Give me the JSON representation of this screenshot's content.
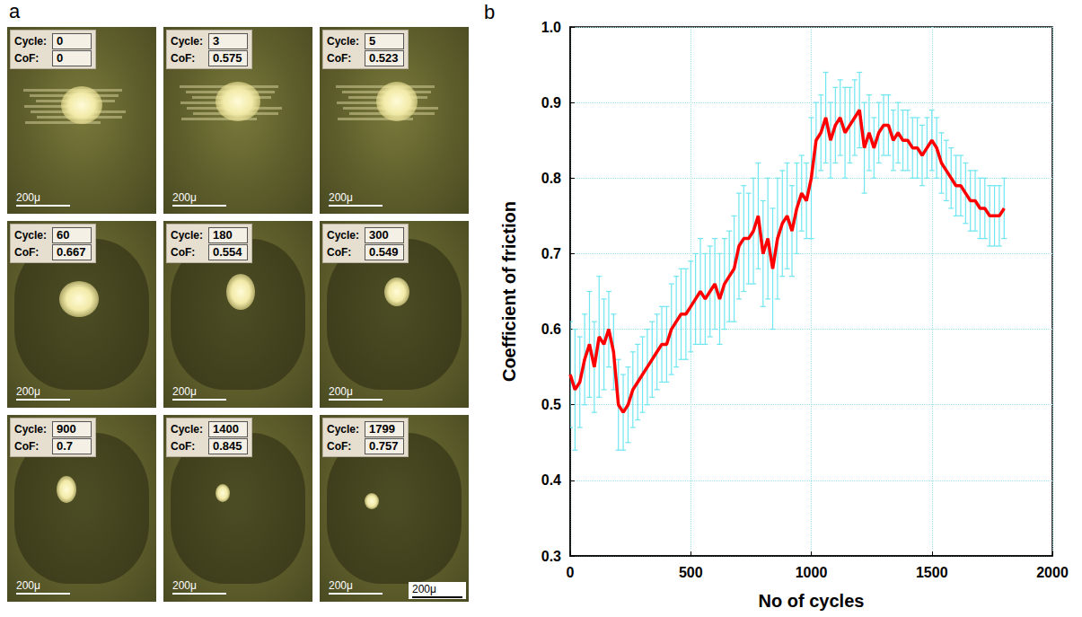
{
  "panel_a": {
    "letter": "a",
    "cycle_label": "Cycle:",
    "cof_label": "CoF:",
    "scale_label": "200μ",
    "frames": [
      {
        "cycle": 0,
        "cof": 0
      },
      {
        "cycle": 3,
        "cof": 0.575
      },
      {
        "cycle": 5,
        "cof": 0.523
      },
      {
        "cycle": 60,
        "cof": 0.667
      },
      {
        "cycle": 180,
        "cof": 0.554
      },
      {
        "cycle": 300,
        "cof": 0.549
      },
      {
        "cycle": 900,
        "cof": 0.7
      },
      {
        "cycle": 1400,
        "cof": 0.845
      },
      {
        "cycle": 1799,
        "cof": 0.757
      }
    ],
    "extra_scale_label": "200μ"
  },
  "chart_data": {
    "letter": "b",
    "type": "line",
    "x_label": "No of cycles",
    "y_label": "Coefficient of friction",
    "color": "#ff0000",
    "x": [
      0,
      20,
      40,
      60,
      80,
      100,
      120,
      140,
      160,
      180,
      200,
      220,
      240,
      260,
      280,
      300,
      320,
      340,
      360,
      380,
      400,
      420,
      440,
      460,
      480,
      500,
      520,
      540,
      560,
      580,
      600,
      620,
      640,
      660,
      680,
      700,
      720,
      740,
      760,
      780,
      800,
      820,
      840,
      860,
      880,
      900,
      920,
      940,
      960,
      980,
      1000,
      1020,
      1040,
      1060,
      1080,
      1100,
      1120,
      1140,
      1160,
      1180,
      1200,
      1220,
      1240,
      1260,
      1280,
      1300,
      1320,
      1340,
      1360,
      1380,
      1400,
      1420,
      1440,
      1460,
      1480,
      1500,
      1520,
      1540,
      1560,
      1580,
      1600,
      1620,
      1640,
      1660,
      1680,
      1700,
      1720,
      1740,
      1760,
      1780,
      1800
    ],
    "values": [
      0.54,
      0.52,
      0.53,
      0.56,
      0.58,
      0.55,
      0.59,
      0.58,
      0.6,
      0.57,
      0.5,
      0.49,
      0.5,
      0.52,
      0.53,
      0.54,
      0.55,
      0.56,
      0.57,
      0.58,
      0.58,
      0.6,
      0.61,
      0.62,
      0.62,
      0.63,
      0.64,
      0.65,
      0.64,
      0.65,
      0.66,
      0.64,
      0.66,
      0.67,
      0.68,
      0.71,
      0.72,
      0.72,
      0.73,
      0.75,
      0.7,
      0.72,
      0.68,
      0.72,
      0.74,
      0.75,
      0.73,
      0.76,
      0.78,
      0.77,
      0.8,
      0.85,
      0.86,
      0.88,
      0.85,
      0.87,
      0.88,
      0.86,
      0.87,
      0.88,
      0.89,
      0.84,
      0.86,
      0.84,
      0.86,
      0.87,
      0.87,
      0.85,
      0.86,
      0.85,
      0.85,
      0.84,
      0.84,
      0.83,
      0.84,
      0.85,
      0.84,
      0.82,
      0.81,
      0.8,
      0.79,
      0.79,
      0.78,
      0.77,
      0.77,
      0.76,
      0.76,
      0.75,
      0.75,
      0.75,
      0.76
    ],
    "errors": [
      0.07,
      0.08,
      0.06,
      0.06,
      0.07,
      0.06,
      0.08,
      0.06,
      0.05,
      0.05,
      0.06,
      0.05,
      0.05,
      0.05,
      0.05,
      0.05,
      0.05,
      0.05,
      0.05,
      0.05,
      0.05,
      0.06,
      0.06,
      0.06,
      0.06,
      0.06,
      0.06,
      0.07,
      0.06,
      0.06,
      0.06,
      0.06,
      0.06,
      0.06,
      0.07,
      0.07,
      0.07,
      0.06,
      0.07,
      0.07,
      0.07,
      0.08,
      0.08,
      0.08,
      0.07,
      0.07,
      0.06,
      0.06,
      0.05,
      0.05,
      0.08,
      0.05,
      0.05,
      0.06,
      0.05,
      0.05,
      0.05,
      0.06,
      0.05,
      0.05,
      0.05,
      0.06,
      0.05,
      0.04,
      0.04,
      0.04,
      0.04,
      0.04,
      0.04,
      0.04,
      0.04,
      0.04,
      0.04,
      0.04,
      0.04,
      0.04,
      0.04,
      0.04,
      0.04,
      0.04,
      0.04,
      0.04,
      0.04,
      0.04,
      0.04,
      0.04,
      0.04,
      0.04,
      0.04,
      0.04,
      0.04
    ],
    "xlim": [
      0,
      2000
    ],
    "xticks": [
      0,
      500,
      1000,
      1500,
      2000
    ],
    "ylim": [
      0.3,
      1.0
    ],
    "yticks": [
      0.3,
      0.4,
      0.5,
      0.6,
      0.7,
      0.8,
      0.9,
      {
        "value": 1.0,
        "label": "1.0"
      }
    ],
    "grid": true
  }
}
